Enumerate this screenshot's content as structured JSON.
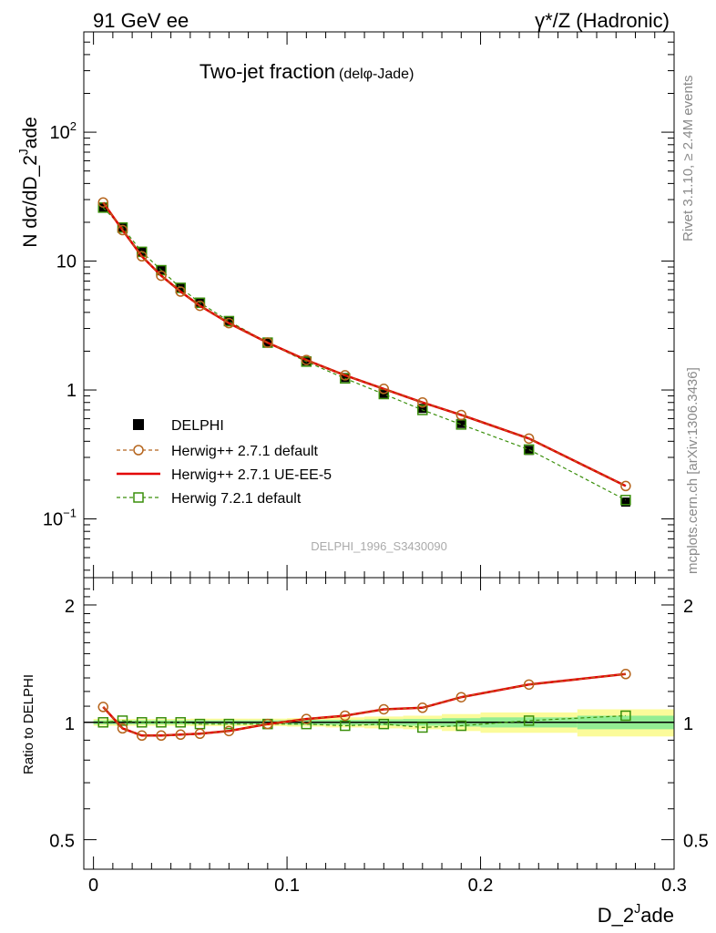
{
  "header": {
    "left": "91 GeV ee",
    "right": "γ*/Z (Hadronic)"
  },
  "side_labels": {
    "rivet": "Rivet 3.1.10, ≥ 2.4M events",
    "mcplots": "mcplots.cern.ch [arXiv:1306.3436]"
  },
  "chart_data": [
    {
      "type": "line",
      "panel": "main",
      "title": "Two-jet fraction",
      "subtitle": "(delφ-Jade)",
      "ylabel": "N dσ/dD_2^Jade",
      "yscale": "log",
      "ylim": [
        0.035,
        600
      ],
      "xlim": [
        -0.005,
        0.3
      ],
      "y_ticks": [
        {
          "v": 0.1,
          "label": "10^-1"
        },
        {
          "v": 1,
          "label": "1"
        },
        {
          "v": 10,
          "label": "10"
        },
        {
          "v": 100,
          "label": "10^2"
        }
      ],
      "watermark": "DELPHI_1996_S3430090",
      "legend_position": "lower-left",
      "series": [
        {
          "name": "DELPHI",
          "style": "data",
          "color": "#000000",
          "points": [
            [
              0.005,
              26.0
            ],
            [
              0.015,
              18.0
            ],
            [
              0.025,
              11.8
            ],
            [
              0.035,
              8.5
            ],
            [
              0.045,
              6.2
            ],
            [
              0.055,
              4.8
            ],
            [
              0.07,
              3.45
            ],
            [
              0.09,
              2.35
            ],
            [
              0.11,
              1.68
            ],
            [
              0.13,
              1.25
            ],
            [
              0.15,
              0.94
            ],
            [
              0.17,
              0.72
            ],
            [
              0.19,
              0.55
            ],
            [
              0.225,
              0.34
            ],
            [
              0.275,
              0.135
            ]
          ]
        },
        {
          "name": "Herwig++ 2.7.1 default",
          "style": "circle-dashed",
          "color": "#b5651d",
          "points": [
            [
              0.005,
              28.5
            ],
            [
              0.015,
              17.4
            ],
            [
              0.025,
              10.9
            ],
            [
              0.035,
              7.7
            ],
            [
              0.045,
              5.8
            ],
            [
              0.055,
              4.5
            ],
            [
              0.07,
              3.3
            ],
            [
              0.09,
              2.33
            ],
            [
              0.11,
              1.71
            ],
            [
              0.13,
              1.3
            ],
            [
              0.15,
              1.02
            ],
            [
              0.17,
              0.8
            ],
            [
              0.19,
              0.64
            ],
            [
              0.225,
              0.42
            ],
            [
              0.275,
              0.18
            ]
          ]
        },
        {
          "name": "Herwig++ 2.7.1 UE-EE-5",
          "style": "solid",
          "color": "#e30000",
          "points": [
            [
              0.005,
              28.5
            ],
            [
              0.015,
              17.4
            ],
            [
              0.025,
              10.9
            ],
            [
              0.035,
              7.7
            ],
            [
              0.045,
              5.8
            ],
            [
              0.055,
              4.5
            ],
            [
              0.07,
              3.3
            ],
            [
              0.09,
              2.33
            ],
            [
              0.11,
              1.71
            ],
            [
              0.13,
              1.3
            ],
            [
              0.15,
              1.02
            ],
            [
              0.17,
              0.8
            ],
            [
              0.19,
              0.64
            ],
            [
              0.225,
              0.42
            ],
            [
              0.275,
              0.18
            ]
          ]
        },
        {
          "name": "Herwig 7.2.1 default",
          "style": "square-dashed",
          "color": "#3a8f0b",
          "points": [
            [
              0.005,
              26.0
            ],
            [
              0.015,
              18.2
            ],
            [
              0.025,
              11.8
            ],
            [
              0.035,
              8.5
            ],
            [
              0.045,
              6.2
            ],
            [
              0.055,
              4.75
            ],
            [
              0.07,
              3.42
            ],
            [
              0.09,
              2.33
            ],
            [
              0.11,
              1.66
            ],
            [
              0.13,
              1.23
            ],
            [
              0.15,
              0.93
            ],
            [
              0.17,
              0.7
            ],
            [
              0.19,
              0.54
            ],
            [
              0.225,
              0.345
            ],
            [
              0.275,
              0.14
            ]
          ]
        }
      ]
    },
    {
      "type": "line",
      "panel": "ratio",
      "ylabel": "Ratio to DELPHI",
      "xlabel": "D_2^Jade",
      "yscale": "log",
      "ylim": [
        0.42,
        2.35
      ],
      "xlim": [
        -0.005,
        0.3
      ],
      "x_ticks": [
        {
          "v": 0,
          "label": "0"
        },
        {
          "v": 0.1,
          "label": "0.1"
        },
        {
          "v": 0.2,
          "label": "0.2"
        },
        {
          "v": 0.3,
          "label": "0.3"
        }
      ],
      "y_ticks": [
        {
          "v": 0.5,
          "label": "0.5"
        },
        {
          "v": 1,
          "label": "1"
        },
        {
          "v": 2,
          "label": "2"
        }
      ],
      "bands": [
        {
          "x0": 0.0,
          "x1": 0.01,
          "stat": 0.012,
          "tot": 0.02
        },
        {
          "x0": 0.01,
          "x1": 0.02,
          "stat": 0.012,
          "tot": 0.02
        },
        {
          "x0": 0.02,
          "x1": 0.03,
          "stat": 0.012,
          "tot": 0.02
        },
        {
          "x0": 0.03,
          "x1": 0.04,
          "stat": 0.012,
          "tot": 0.02
        },
        {
          "x0": 0.04,
          "x1": 0.05,
          "stat": 0.012,
          "tot": 0.02
        },
        {
          "x0": 0.05,
          "x1": 0.06,
          "stat": 0.012,
          "tot": 0.022
        },
        {
          "x0": 0.06,
          "x1": 0.08,
          "stat": 0.012,
          "tot": 0.022
        },
        {
          "x0": 0.08,
          "x1": 0.1,
          "stat": 0.012,
          "tot": 0.022
        },
        {
          "x0": 0.1,
          "x1": 0.12,
          "stat": 0.015,
          "tot": 0.025
        },
        {
          "x0": 0.12,
          "x1": 0.14,
          "stat": 0.015,
          "tot": 0.03
        },
        {
          "x0": 0.14,
          "x1": 0.16,
          "stat": 0.018,
          "tot": 0.035
        },
        {
          "x0": 0.16,
          "x1": 0.18,
          "stat": 0.02,
          "tot": 0.04
        },
        {
          "x0": 0.18,
          "x1": 0.2,
          "stat": 0.025,
          "tot": 0.05
        },
        {
          "x0": 0.2,
          "x1": 0.25,
          "stat": 0.03,
          "tot": 0.06
        },
        {
          "x0": 0.25,
          "x1": 0.3,
          "stat": 0.04,
          "tot": 0.08
        }
      ],
      "series": [
        {
          "name": "Herwig++ 2.7.1 default",
          "style": "circle-dashed",
          "color": "#b5651d",
          "points": [
            [
              0.005,
              1.095
            ],
            [
              0.015,
              0.965
            ],
            [
              0.025,
              0.925
            ],
            [
              0.035,
              0.925
            ],
            [
              0.045,
              0.93
            ],
            [
              0.055,
              0.935
            ],
            [
              0.07,
              0.95
            ],
            [
              0.09,
              0.99
            ],
            [
              0.11,
              1.02
            ],
            [
              0.13,
              1.04
            ],
            [
              0.15,
              1.08
            ],
            [
              0.17,
              1.09
            ],
            [
              0.19,
              1.16
            ],
            [
              0.225,
              1.25
            ],
            [
              0.275,
              1.33
            ]
          ]
        },
        {
          "name": "Herwig++ 2.7.1 UE-EE-5",
          "style": "solid",
          "color": "#e30000",
          "points": [
            [
              0.005,
              1.095
            ],
            [
              0.015,
              0.965
            ],
            [
              0.025,
              0.925
            ],
            [
              0.035,
              0.925
            ],
            [
              0.045,
              0.93
            ],
            [
              0.055,
              0.935
            ],
            [
              0.07,
              0.95
            ],
            [
              0.09,
              0.99
            ],
            [
              0.11,
              1.02
            ],
            [
              0.13,
              1.04
            ],
            [
              0.15,
              1.08
            ],
            [
              0.17,
              1.09
            ],
            [
              0.19,
              1.16
            ],
            [
              0.225,
              1.25
            ],
            [
              0.275,
              1.33
            ]
          ]
        },
        {
          "name": "Herwig 7.2.1 default",
          "style": "square-dashed",
          "color": "#3a8f0b",
          "points": [
            [
              0.005,
              1.0
            ],
            [
              0.015,
              1.01
            ],
            [
              0.025,
              1.0
            ],
            [
              0.035,
              1.0
            ],
            [
              0.045,
              1.0
            ],
            [
              0.055,
              0.99
            ],
            [
              0.07,
              0.99
            ],
            [
              0.09,
              0.99
            ],
            [
              0.11,
              0.99
            ],
            [
              0.13,
              0.98
            ],
            [
              0.15,
              0.99
            ],
            [
              0.17,
              0.97
            ],
            [
              0.19,
              0.98
            ],
            [
              0.225,
              1.01
            ],
            [
              0.275,
              1.04
            ]
          ]
        }
      ]
    }
  ]
}
